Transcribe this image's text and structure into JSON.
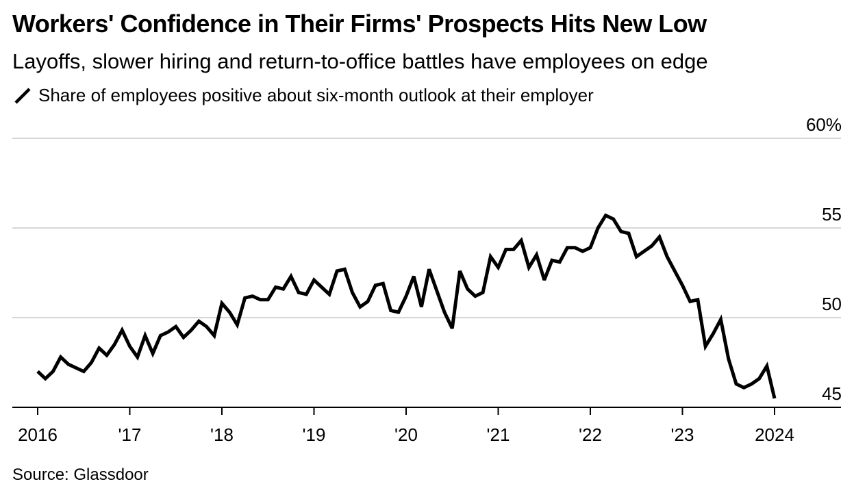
{
  "chart_data": {
    "type": "line",
    "title": "Workers' Confidence in Their Firms' Prospects Hits New Low",
    "subtitle": "Layoffs, slower hiring and return-to-office battles have employees on edge",
    "source": "Source: Glassdoor",
    "series": [
      {
        "name": "Share of employees positive about six-month outlook at their employer",
        "color": "#000000",
        "values": [
          47.0,
          46.6,
          47.0,
          47.8,
          47.4,
          47.2,
          47.0,
          47.5,
          48.3,
          47.9,
          48.5,
          49.3,
          48.4,
          47.8,
          49.0,
          48.0,
          49.0,
          49.2,
          49.5,
          48.9,
          49.3,
          49.8,
          49.5,
          49.0,
          50.8,
          50.3,
          49.6,
          51.1,
          51.2,
          51.0,
          51.0,
          51.7,
          51.6,
          52.3,
          51.4,
          51.3,
          52.1,
          51.7,
          51.3,
          52.6,
          52.7,
          51.4,
          50.6,
          50.9,
          51.8,
          51.9,
          50.4,
          50.3,
          51.2,
          52.3,
          50.6,
          52.7,
          51.5,
          50.3,
          49.4,
          52.6,
          51.6,
          51.2,
          51.4,
          53.4,
          52.8,
          53.8,
          53.8,
          54.3,
          52.8,
          53.5,
          52.1,
          53.2,
          53.1,
          53.9,
          53.9,
          53.7,
          53.9,
          55.0,
          55.7,
          55.5,
          54.8,
          54.7,
          53.4,
          53.7,
          54.0,
          54.5,
          53.4,
          52.6,
          51.8,
          50.9,
          51.0,
          48.4,
          49.1,
          49.9,
          47.7,
          46.3,
          46.1,
          46.3,
          46.6,
          47.3,
          45.5
        ]
      }
    ],
    "x_start": "2016-01",
    "x_end": "2024-01",
    "xtick_labels": [
      "2016",
      "'17",
      "'18",
      "'19",
      "'20",
      "'21",
      "'22",
      "'23",
      "2024"
    ],
    "xlabel": "",
    "ylabel": "",
    "ylim": [
      45,
      60
    ],
    "yticks": [
      45,
      50,
      55,
      60
    ],
    "ytick_labels": [
      "45",
      "50",
      "55",
      "60%"
    ],
    "grid": true,
    "legend_position": "top-left"
  }
}
